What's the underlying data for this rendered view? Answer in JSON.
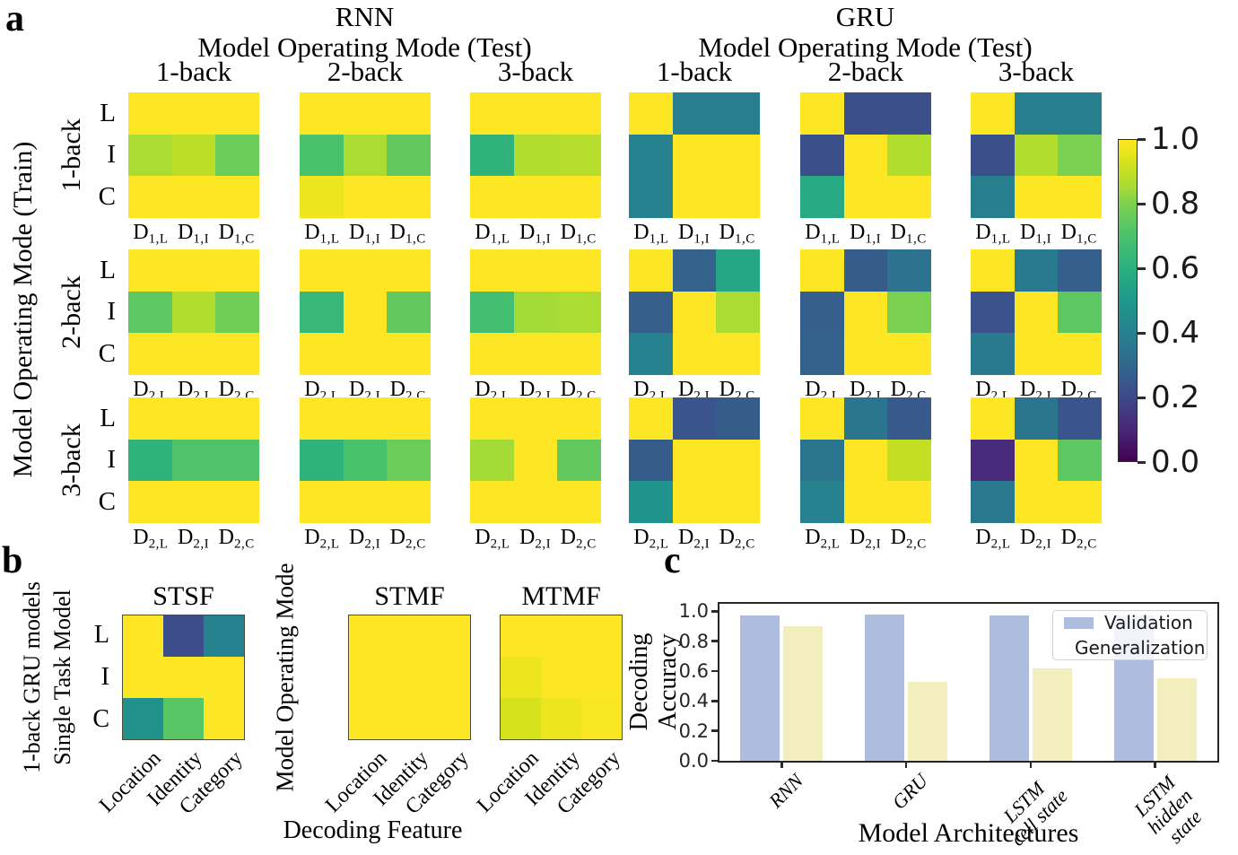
{
  "panel_letters": {
    "a": "a",
    "b": "b",
    "c": "c"
  },
  "colorbar": {
    "tick_labels": [
      "1.0",
      "0.8",
      "0.6",
      "0.4",
      "0.2",
      "0.0"
    ],
    "tick_values": [
      1.0,
      0.8,
      0.6,
      0.4,
      0.2,
      0.0
    ],
    "vmin": 0.0,
    "vmax": 1.0
  },
  "chart_data": [
    {
      "id": "a",
      "type": "heatmap",
      "colormap": "viridis",
      "vmin": 0.0,
      "vmax": 1.0,
      "column_axis_title": "Model Operating Mode (Test)",
      "row_axis_title": "Model Operating Mode (Train)",
      "test_modes": [
        "1-back",
        "2-back",
        "3-back"
      ],
      "train_modes": [
        "1-back",
        "2-back",
        "3-back"
      ],
      "decoder_row_labels": [
        "L",
        "I",
        "C"
      ],
      "decoder_col_labels": [
        [
          {
            "base": "D",
            "sub": "1,L"
          },
          {
            "base": "D",
            "sub": "1,I"
          },
          {
            "base": "D",
            "sub": "1,C"
          }
        ],
        [
          {
            "base": "D",
            "sub": "2,L"
          },
          {
            "base": "D",
            "sub": "2,I"
          },
          {
            "base": "D",
            "sub": "2,C"
          }
        ],
        [
          {
            "base": "D",
            "sub": "2,L"
          },
          {
            "base": "D",
            "sub": "2,I"
          },
          {
            "base": "D",
            "sub": "2,C"
          }
        ]
      ],
      "groups": [
        {
          "name": "RNN",
          "matrices": [
            [
              [
                [
                  1,
                  1,
                  1
                ],
                [
                  0.86,
                  0.89,
                  0.77
                ],
                [
                  1,
                  1,
                  1
                ]
              ],
              [
                [
                  1,
                  1,
                  1
                ],
                [
                  0.7,
                  0.86,
                  0.75
                ],
                [
                  0.97,
                  1,
                  1
                ]
              ],
              [
                [
                  1,
                  1,
                  1
                ],
                [
                  0.62,
                  0.87,
                  0.88
                ],
                [
                  1,
                  1,
                  1
                ]
              ]
            ],
            [
              [
                [
                  1,
                  1,
                  1
                ],
                [
                  0.74,
                  0.87,
                  0.78
                ],
                [
                  1,
                  1,
                  1
                ]
              ],
              [
                [
                  1,
                  1,
                  1
                ],
                [
                  0.64,
                  1,
                  0.75
                ],
                [
                  1,
                  1,
                  1
                ]
              ],
              [
                [
                  1,
                  1,
                  1
                ],
                [
                  0.68,
                  0.85,
                  0.86
                ],
                [
                  1,
                  1,
                  1
                ]
              ]
            ],
            [
              [
                [
                  1,
                  1,
                  1
                ],
                [
                  0.62,
                  0.71,
                  0.71
                ],
                [
                  1,
                  1,
                  1
                ]
              ],
              [
                [
                  1,
                  1,
                  1
                ],
                [
                  0.62,
                  0.7,
                  0.77
                ],
                [
                  1,
                  1,
                  1
                ]
              ],
              [
                [
                  1,
                  1,
                  1
                ],
                [
                  0.85,
                  1,
                  0.75
                ],
                [
                  1,
                  1,
                  1
                ]
              ]
            ]
          ]
        },
        {
          "name": "GRU",
          "matrices": [
            [
              [
                [
                  1,
                  0.38,
                  0.38
                ],
                [
                  0.4,
                  1,
                  1
                ],
                [
                  0.4,
                  1,
                  1
                ]
              ],
              [
                [
                  1,
                  0.22,
                  0.22
                ],
                [
                  0.22,
                  1,
                  0.87
                ],
                [
                  0.57,
                  1,
                  1
                ]
              ],
              [
                [
                  1,
                  0.39,
                  0.39
                ],
                [
                  0.22,
                  0.87,
                  0.8
                ],
                [
                  0.39,
                  1,
                  1
                ]
              ]
            ],
            [
              [
                [
                  1,
                  0.28,
                  0.56
                ],
                [
                  0.27,
                  1,
                  0.86
                ],
                [
                  0.4,
                  1,
                  1
                ]
              ],
              [
                [
                  1,
                  0.26,
                  0.34
                ],
                [
                  0.27,
                  1,
                  0.8
                ],
                [
                  0.28,
                  1,
                  1
                ]
              ],
              [
                [
                  1,
                  0.37,
                  0.27
                ],
                [
                  0.23,
                  1,
                  0.74
                ],
                [
                  0.37,
                  1,
                  1
                ]
              ]
            ],
            [
              [
                [
                  1,
                  0.24,
                  0.26
                ],
                [
                  0.26,
                  1,
                  1
                ],
                [
                  0.48,
                  1,
                  1
                ]
              ],
              [
                [
                  1,
                  0.35,
                  0.25
                ],
                [
                  0.35,
                  1,
                  0.9
                ],
                [
                  0.4,
                  1,
                  1
                ]
              ],
              [
                [
                  1,
                  0.35,
                  0.24
                ],
                [
                  0.11,
                  1,
                  0.74
                ],
                [
                  0.36,
                  1,
                  1
                ]
              ]
            ]
          ]
        }
      ]
    },
    {
      "id": "b",
      "type": "heatmap",
      "colormap": "viridis",
      "vmin": 0.0,
      "vmax": 1.0,
      "row_axis_lines": [
        "1-back GRU models",
        "Single Task Model"
      ],
      "mode_axis_label": "Model Operating Mode",
      "titles": [
        "STSF",
        "STMF",
        "MTMF"
      ],
      "yticklabels": [
        "L",
        "I",
        "C"
      ],
      "xticklabels": [
        "Location",
        "Identity",
        "Category"
      ],
      "xlabel": "Decoding Feature",
      "matrices": [
        [
          [
            1,
            0.21,
            0.4
          ],
          [
            1,
            1,
            1
          ],
          [
            0.47,
            0.73,
            1
          ]
        ],
        [
          [
            1,
            1,
            1
          ],
          [
            1,
            1,
            1
          ],
          [
            1,
            1,
            1
          ]
        ],
        [
          [
            1,
            1,
            1
          ],
          [
            0.97,
            1,
            1
          ],
          [
            0.93,
            0.97,
            0.99
          ]
        ]
      ]
    },
    {
      "id": "c",
      "type": "bar",
      "ylabel_lines": [
        "Decoding",
        "Accuracy"
      ],
      "xlabel": "Model Architectures",
      "ylim": [
        0,
        1.05
      ],
      "yticks": [
        0.0,
        0.2,
        0.4,
        0.6,
        0.8,
        1.0
      ],
      "ytick_labels": [
        "0.0",
        "0.2",
        "0.4",
        "0.6",
        "0.8",
        "1.0"
      ],
      "categories": [
        [
          "RNN"
        ],
        [
          "GRU"
        ],
        [
          "LSTM",
          "cell state"
        ],
        [
          "LSTM",
          "hidden",
          "state"
        ]
      ],
      "series": [
        {
          "name": "Validation",
          "color": "#aebdde",
          "values": [
            0.97,
            0.98,
            0.97,
            0.97
          ]
        },
        {
          "name": "Generalization",
          "color": "#f3eebd",
          "values": [
            0.9,
            0.53,
            0.62,
            0.55
          ]
        }
      ],
      "legend_position": "upper right"
    }
  ]
}
